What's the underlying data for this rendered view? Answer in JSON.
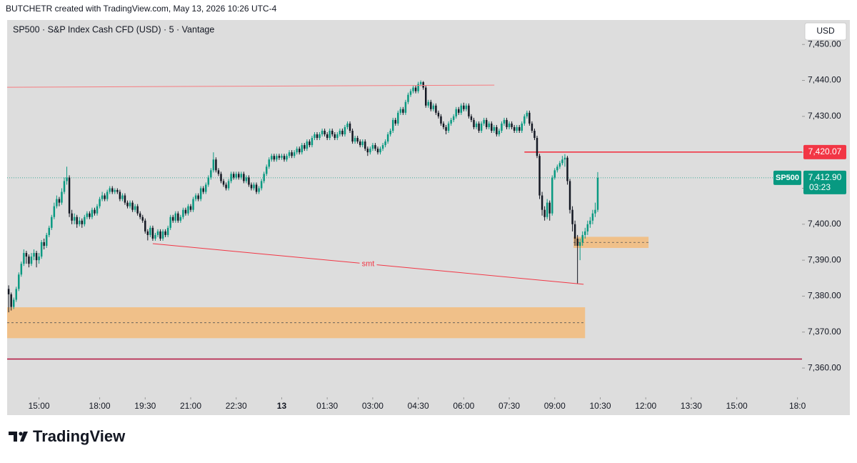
{
  "chart_data": {
    "type": "candlestick",
    "header": "BUTCHETR created with TradingView.com, May 13, 2026 10:26 UTC-4",
    "title": "SP500 · S&P Index Cash CFD (USD) · 5 · Vantage",
    "currency": "USD",
    "brand": "TradingView",
    "up_color": "#089981",
    "down_color": "#131722",
    "open": [
      7382,
      7380.5,
      7377,
      7379,
      7382,
      7386,
      7389,
      7392,
      7391,
      7389,
      7391,
      7392,
      7390,
      7391,
      7395,
      7394,
      7397,
      7399,
      7402,
      7405,
      7407,
      7406,
      7409,
      7412,
      7413,
      7403,
      7401,
      7402,
      7400,
      7401,
      7400,
      7402,
      7403,
      7402,
      7404,
      7403,
      7405,
      7407,
      7408,
      7407,
      7409,
      7410,
      7409,
      7409.5,
      7409,
      7407,
      7408,
      7406,
      7405,
      7406,
      7404,
      7405,
      7403,
      7402,
      7401,
      7398,
      7397,
      7399,
      7396,
      7397,
      7398,
      7396,
      7398,
      7397,
      7399,
      7402,
      7401,
      7403,
      7401,
      7402,
      7404,
      7403,
      7405,
      7404,
      7407,
      7408,
      7407,
      7410,
      7409,
      7411,
      7413,
      7415,
      7418,
      7415,
      7414,
      7412,
      7411,
      7410,
      7412,
      7414,
      7413,
      7414,
      7413,
      7414,
      7412,
      7413,
      7411,
      7410,
      7411,
      7409,
      7410,
      7412,
      7414,
      7416,
      7418,
      7419,
      7418,
      7419,
      7418.5,
      7419,
      7418,
      7419,
      7420,
      7419,
      7420,
      7421,
      7420,
      7422,
      7421,
      7423,
      7422,
      7424,
      7425,
      7424,
      7425,
      7426,
      7425,
      7424,
      7426,
      7425,
      7424,
      7425,
      7426,
      7425,
      7427,
      7428,
      7426,
      7423,
      7424,
      7423,
      7422,
      7423,
      7421,
      7420,
      7421,
      7422,
      7421,
      7420,
      7421,
      7422,
      7423,
      7425,
      7426,
      7429,
      7428,
      7431,
      7432,
      7431,
      7434,
      7436,
      7437,
      7438,
      7437,
      7439,
      7439.5,
      7438,
      7433,
      7434,
      7432,
      7433,
      7431,
      7430,
      7428,
      7427,
      7426,
      7428,
      7429,
      7430,
      7432,
      7431,
      7433,
      7432,
      7433,
      7430,
      7429,
      7427,
      7428,
      7426,
      7428,
      7429,
      7427,
      7428,
      7426,
      7427,
      7425,
      7426,
      7428,
      7429,
      7427,
      7428,
      7427,
      7426,
      7427,
      7426,
      7428,
      7430,
      7431,
      7428,
      7426,
      7424,
      7419,
      7408,
      7404,
      7402,
      7406,
      7403,
      7413,
      7415,
      7416,
      7417,
      7418,
      7418.5,
      7412,
      7404,
      7400,
      7396,
      7394,
      7395,
      7397,
      7398,
      7400,
      7401,
      7403,
      7404
    ],
    "high": [
      7383,
      7381,
      7379.6,
      7382.6,
      7386.6,
      7389.6,
      7393,
      7392.6,
      7391.6,
      7392,
      7393,
      7392.6,
      7392,
      7395.6,
      7396,
      7397.6,
      7399.6,
      7402.6,
      7406,
      7408,
      7407.6,
      7410,
      7413,
      7416,
      7413.6,
      7404,
      7403,
      7402.6,
      7402,
      7401.6,
      7402.6,
      7403.6,
      7403.6,
      7404.6,
      7404.6,
      7405.6,
      7407.6,
      7409,
      7408.6,
      7409.6,
      7410.6,
      7410.6,
      7410,
      7410,
      7409.6,
      7408.6,
      7408.6,
      7406.6,
      7406.6,
      7406.6,
      7405.6,
      7405.6,
      7403.6,
      7402.6,
      7401.6,
      7398.6,
      7399.6,
      7399.6,
      7397.6,
      7398.6,
      7398.6,
      7398.6,
      7398.6,
      7399.6,
      7402.6,
      7402.6,
      7403.6,
      7403.6,
      7402.6,
      7404.6,
      7404.6,
      7405.6,
      7405.6,
      7407.6,
      7408.6,
      7408.6,
      7410.6,
      7410.6,
      7411.6,
      7413.6,
      7415.6,
      7420,
      7418.6,
      7415.6,
      7414.6,
      7412.6,
      7411.6,
      7412.6,
      7414.6,
      7414.6,
      7414.6,
      7414.6,
      7414.6,
      7414.6,
      7413.6,
      7413.6,
      7411.6,
      7411.6,
      7411.6,
      7410.6,
      7412.6,
      7414.6,
      7416.6,
      7418.6,
      7419.6,
      7419.6,
      7419.6,
      7419.6,
      7419.6,
      7419.6,
      7419.6,
      7420.6,
      7420.6,
      7420.6,
      7421.6,
      7421.6,
      7422.6,
      7422.6,
      7423.6,
      7423.6,
      7424.6,
      7425.6,
      7425.6,
      7425.6,
      7426.6,
      7426.6,
      7425.6,
      7426.6,
      7426.6,
      7425.6,
      7425.6,
      7426.6,
      7426.6,
      7427.6,
      7428.6,
      7428.6,
      7426.6,
      7424.6,
      7424.6,
      7423.6,
      7423.6,
      7423.6,
      7421.6,
      7421.6,
      7422.6,
      7422.6,
      7421.6,
      7421.6,
      7422.6,
      7423.6,
      7425.6,
      7426.6,
      7429.6,
      7429.6,
      7431.6,
      7432.6,
      7432.6,
      7434.6,
      7436.6,
      7437.6,
      7438.6,
      7438.6,
      7439.6,
      7440,
      7439.8,
      7438.6,
      7434.6,
      7434.6,
      7433.6,
      7433.6,
      7431.6,
      7430.6,
      7428.6,
      7427.6,
      7428.6,
      7429.6,
      7430.6,
      7432.6,
      7432.6,
      7433.6,
      7433.8,
      7433.6,
      7433.6,
      7430.6,
      7429.6,
      7428.6,
      7428.6,
      7428.6,
      7429.6,
      7429.6,
      7428.6,
      7428.6,
      7427.6,
      7427.6,
      7426.6,
      7428.6,
      7429.6,
      7429.6,
      7428.6,
      7428.6,
      7427.6,
      7427.6,
      7427.6,
      7428.6,
      7430.6,
      7431.6,
      7431.6,
      7428.6,
      7426.6,
      7424.6,
      7419.6,
      7409,
      7405,
      7407,
      7406.6,
      7413.6,
      7415.6,
      7416.6,
      7417.6,
      7419,
      7419.5,
      7419,
      7412.6,
      7405,
      7401,
      7397,
      7396,
      7398,
      7399,
      7401,
      7402,
      7404,
      7406,
      7414.5
    ],
    "low": [
      7375.5,
      7376,
      7376.4,
      7378.4,
      7381.4,
      7385.4,
      7388.4,
      7389,
      7388,
      7388.4,
      7390,
      7388,
      7389,
      7390.4,
      7393,
      7393.4,
      7396.4,
      7398.4,
      7401.4,
      7404.4,
      7405,
      7405.4,
      7408.4,
      7411,
      7402,
      7400,
      7400,
      7399,
      7399.4,
      7399,
      7399.4,
      7401.4,
      7401.4,
      7401.4,
      7402.4,
      7402.4,
      7404.4,
      7406.4,
      7406.4,
      7406.4,
      7408.4,
      7408.4,
      7408.4,
      7408.4,
      7406.4,
      7406.4,
      7405.4,
      7404.4,
      7404.4,
      7403.4,
      7403.4,
      7402.4,
      7401.4,
      7400.4,
      7397.4,
      7395.5,
      7396.4,
      7395.4,
      7395.4,
      7396.4,
      7395.4,
      7395.4,
      7396.4,
      7396.4,
      7398.4,
      7400.4,
      7400.4,
      7400.4,
      7400.4,
      7401.4,
      7402.4,
      7402.4,
      7403.4,
      7403.4,
      7406.4,
      7406.4,
      7406.4,
      7408.4,
      7408.4,
      7410.4,
      7412.4,
      7414.4,
      7414.4,
      7413.4,
      7411.4,
      7410.4,
      7409.4,
      7409.4,
      7411.4,
      7412.4,
      7412.4,
      7412.4,
      7412.4,
      7411.4,
      7411.4,
      7410.4,
      7409.4,
      7409.4,
      7408.4,
      7408.4,
      7409.4,
      7411.4,
      7413.4,
      7415.4,
      7417.4,
      7417.4,
      7417.4,
      7417.9,
      7417.9,
      7417.4,
      7417.4,
      7418.4,
      7418.4,
      7418.4,
      7419.4,
      7419.4,
      7419.4,
      7420.4,
      7420.4,
      7421.4,
      7421.4,
      7423.4,
      7423.4,
      7423.4,
      7424.4,
      7424.4,
      7423.4,
      7423.4,
      7424.4,
      7423.4,
      7423.4,
      7424.4,
      7424.4,
      7424.4,
      7426.4,
      7425.4,
      7422.4,
      7422.4,
      7422.4,
      7421.4,
      7421.4,
      7420.4,
      7419,
      7419.4,
      7420.4,
      7420.4,
      7419.4,
      7419.4,
      7420.4,
      7421.4,
      7422.4,
      7424.4,
      7425.4,
      7427.4,
      7427.4,
      7430.4,
      7430.4,
      7430.4,
      7433.4,
      7435.4,
      7436.4,
      7436.4,
      7436.4,
      7438.4,
      7437.4,
      7432.4,
      7432.4,
      7431.4,
      7431.4,
      7430.4,
      7429.4,
      7427.4,
      7426.4,
      7425,
      7425.4,
      7427.4,
      7428.4,
      7429.4,
      7430.4,
      7430.4,
      7431.4,
      7431.4,
      7429.4,
      7428.4,
      7426.4,
      7426.4,
      7425.4,
      7425.4,
      7427.4,
      7426.4,
      7426.4,
      7425.4,
      7425.4,
      7424.4,
      7424.4,
      7425.4,
      7427.4,
      7426.4,
      7426.4,
      7426.4,
      7425.4,
      7425.4,
      7425.4,
      7425.4,
      7427.4,
      7429.4,
      7427.4,
      7425.4,
      7423.4,
      7418.4,
      7407,
      7402.4,
      7401,
      7401.4,
      7401,
      7402.4,
      7412.4,
      7414.4,
      7415.4,
      7416.4,
      7416,
      7411,
      7403,
      7398,
      7394,
      7383.5,
      7390,
      7394,
      7396,
      7397,
      7399,
      7400,
      7402,
      7403.4
    ],
    "close": [
      7380.5,
      7377,
      7379,
      7382,
      7386,
      7389,
      7392,
      7391,
      7389,
      7391,
      7392,
      7390,
      7391,
      7395,
      7394,
      7397,
      7399,
      7402,
      7405,
      7407,
      7406,
      7409,
      7412,
      7413,
      7403,
      7401,
      7402,
      7400,
      7401,
      7400,
      7402,
      7403,
      7402,
      7404,
      7403,
      7405,
      7407,
      7408,
      7407,
      7409,
      7410,
      7409,
      7409.5,
      7409,
      7407,
      7408,
      7406,
      7405,
      7406,
      7404,
      7405,
      7403,
      7402,
      7401,
      7398,
      7397,
      7399,
      7396,
      7397,
      7398,
      7396,
      7398,
      7397,
      7399,
      7402,
      7401,
      7403,
      7401,
      7402,
      7404,
      7403,
      7405,
      7404,
      7407,
      7408,
      7407,
      7410,
      7409,
      7411,
      7413,
      7415,
      7418,
      7415,
      7414,
      7412,
      7411,
      7410,
      7412,
      7414,
      7413,
      7414,
      7413,
      7414,
      7412,
      7413,
      7411,
      7410,
      7411,
      7409,
      7410,
      7412,
      7414,
      7416,
      7418,
      7419,
      7418,
      7419,
      7418.5,
      7419,
      7418,
      7419,
      7420,
      7419,
      7420,
      7421,
      7420,
      7422,
      7421,
      7423,
      7422,
      7424,
      7425,
      7424,
      7425,
      7426,
      7425,
      7424,
      7426,
      7425,
      7424,
      7425,
      7426,
      7425,
      7427,
      7428,
      7426,
      7423,
      7424,
      7423,
      7422,
      7423,
      7421,
      7420,
      7421,
      7422,
      7421,
      7420,
      7421,
      7422,
      7423,
      7425,
      7426,
      7429,
      7428,
      7431,
      7432,
      7431,
      7434,
      7436,
      7437,
      7438,
      7437,
      7439,
      7439.5,
      7438,
      7433,
      7434,
      7432,
      7433,
      7431,
      7430,
      7428,
      7427,
      7426,
      7428,
      7429,
      7430,
      7432,
      7431,
      7433,
      7432,
      7433,
      7430,
      7429,
      7427,
      7428,
      7426,
      7428,
      7429,
      7427,
      7428,
      7426,
      7427,
      7425,
      7426,
      7428,
      7429,
      7427,
      7428,
      7427,
      7426,
      7427,
      7426,
      7428,
      7430,
      7431,
      7428,
      7426,
      7424,
      7419,
      7408,
      7404,
      7402,
      7406,
      7403,
      7413,
      7415,
      7416,
      7417,
      7418,
      7418.5,
      7412,
      7404,
      7400,
      7396,
      7394,
      7395,
      7397,
      7398,
      7400,
      7401,
      7403,
      7404,
      7412.9
    ],
    "xlim": [
      -0.6,
      313.8
    ],
    "xticks": [
      {
        "value": 12,
        "label": "15:00"
      },
      {
        "value": 36,
        "label": "18:00"
      },
      {
        "value": 54,
        "label": "19:30"
      },
      {
        "value": 72,
        "label": "21:00"
      },
      {
        "value": 90,
        "label": "22:30"
      },
      {
        "value": 108,
        "label": "13"
      },
      {
        "value": 126,
        "label": "01:30"
      },
      {
        "value": 144,
        "label": "03:00"
      },
      {
        "value": 162,
        "label": "04:30"
      },
      {
        "value": 180,
        "label": "06:00"
      },
      {
        "value": 198,
        "label": "07:30"
      },
      {
        "value": 216,
        "label": "09:00"
      },
      {
        "value": 234,
        "label": "10:30"
      },
      {
        "value": 252,
        "label": "12:00"
      },
      {
        "value": 270,
        "label": "13:30"
      },
      {
        "value": 288,
        "label": "15:00"
      },
      {
        "value": 312,
        "label": "18:0"
      }
    ],
    "ylim": [
      7347.1,
      7456.8
    ],
    "yticks": [
      {
        "value": 7450,
        "label": "7,450.00"
      },
      {
        "value": 7440,
        "label": "7,440.00"
      },
      {
        "value": 7430,
        "label": "7,430.00"
      },
      {
        "value": 7420,
        "label": "7,420.00"
      },
      {
        "value": 7410,
        "label": "7,410.00"
      },
      {
        "value": 7400,
        "label": "7,400.00"
      },
      {
        "value": 7390,
        "label": "7,390.00"
      },
      {
        "value": 7380,
        "label": "7,380.00"
      },
      {
        "value": 7370,
        "label": "7,370.00"
      },
      {
        "value": 7360,
        "label": "7,360.00"
      }
    ],
    "zones": [
      {
        "top": 7376.9,
        "bottom": 7368.3,
        "start": -0.6,
        "end": 228,
        "color": "#f0c089"
      },
      {
        "top": 7396.5,
        "bottom": 7393.4,
        "start": 223.4,
        "end": 253.1,
        "color": "#f0c089"
      }
    ],
    "hlines": [
      {
        "value": 7420.07,
        "label": "7,420.07",
        "start": 204,
        "color": "#f23645"
      },
      {
        "value": 7362.5,
        "start": -0.6,
        "color": "#b2133f"
      }
    ],
    "trendlines": [
      {
        "start": -0.6,
        "start_price": 7438.1,
        "end": 192.1,
        "end_price": 7438.7,
        "color": "#f77c80"
      },
      {
        "start": 57,
        "start_price": 7394.6,
        "end": 227.4,
        "end_price": 7383.3,
        "color": "#f23645",
        "label": "smt"
      }
    ],
    "last_price": {
      "symbol": "SP500",
      "value": 7412.9,
      "label": "7,412.90",
      "countdown": "03:23",
      "color": "#089981"
    }
  }
}
